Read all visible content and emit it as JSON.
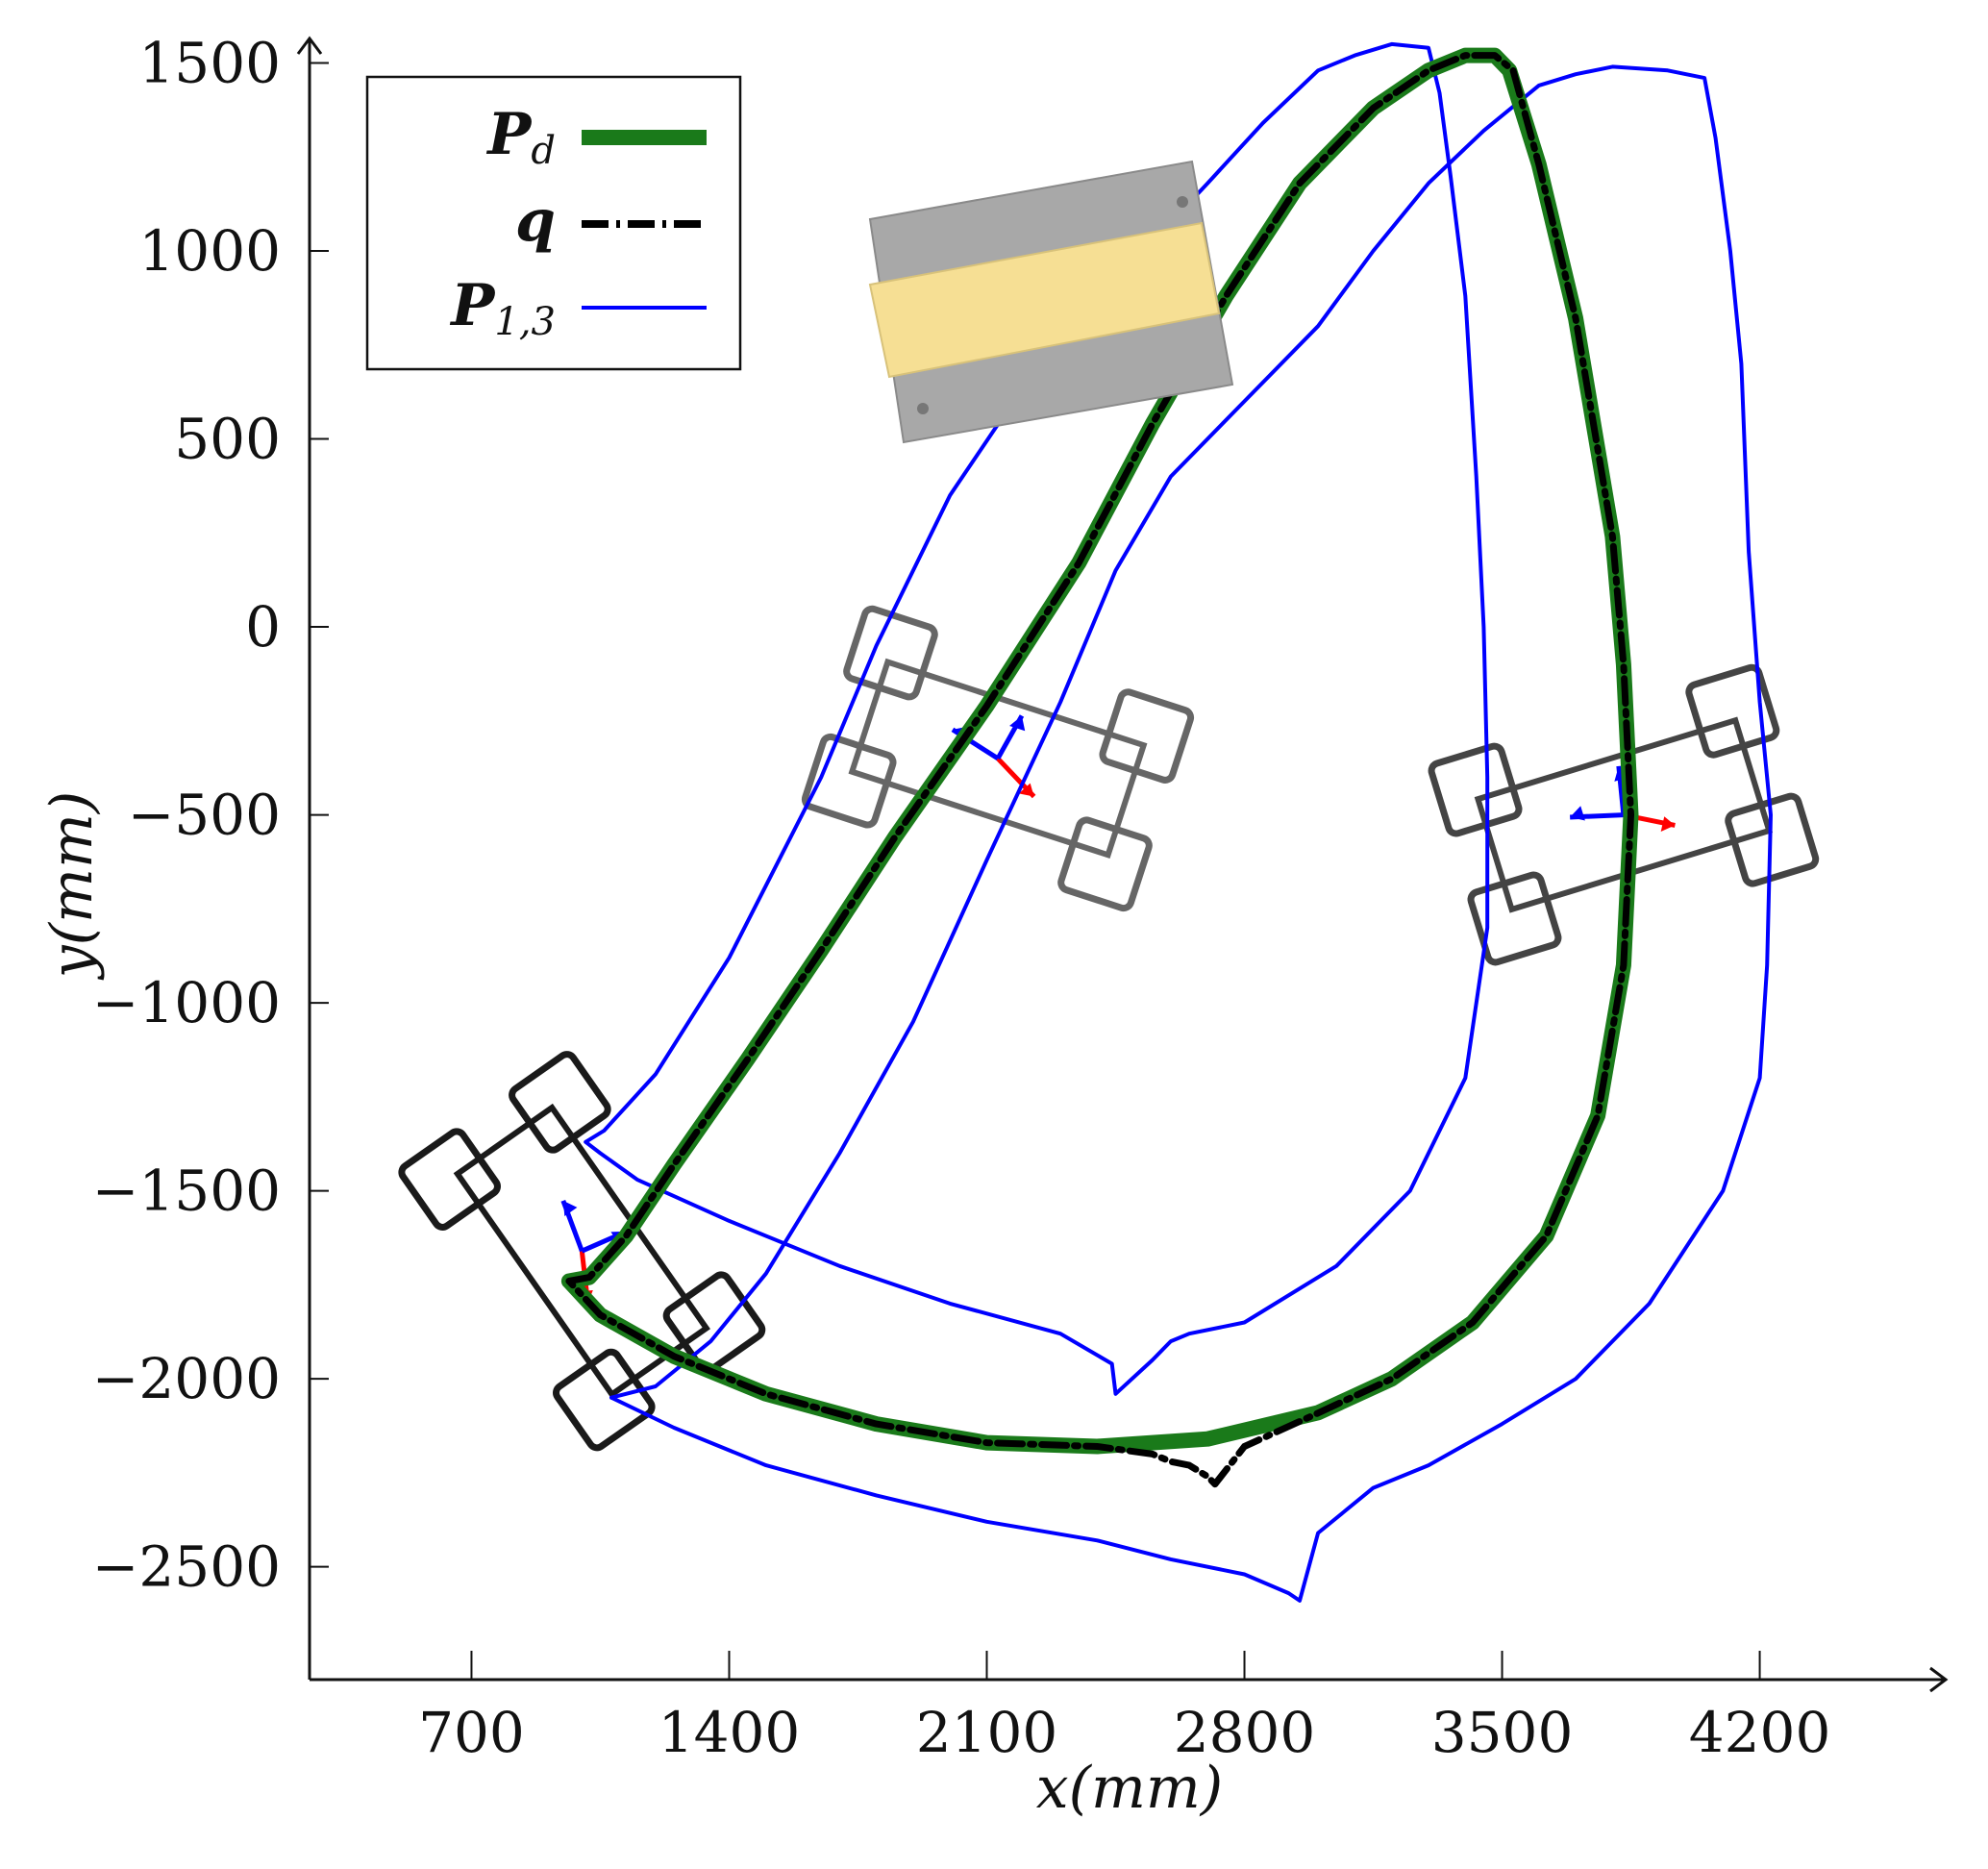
{
  "chart_data": {
    "type": "line",
    "title": "",
    "xlabel": "x(mm)",
    "ylabel": "y(mm)",
    "xlim": [
      260,
      4700
    ],
    "ylim": [
      -2800,
      1560
    ],
    "xticks": [
      700,
      1400,
      2100,
      2800,
      3500,
      4200
    ],
    "yticks": [
      1500,
      1000,
      500,
      0,
      -500,
      -1000,
      -1500,
      -2000,
      -2500
    ],
    "xtick_labels": [
      "700",
      "1400",
      "2100",
      "2800",
      "3500",
      "4200"
    ],
    "ytick_labels": [
      "1500",
      "1000",
      "500",
      "0",
      "−500",
      "−1000",
      "−1500",
      "−2000",
      "−2500"
    ],
    "grid": false,
    "legend_position": "top-left",
    "colors": {
      "desired": "#1a7a1a",
      "actual": "#000000",
      "boundary": "#0000ff",
      "frame_x": "#ff0000",
      "frame_y": "#0000ff",
      "robot_dark": "#1a1a1a",
      "robot_mid": "#444444",
      "robot_light": "#666666"
    },
    "legend": [
      {
        "key": "desired",
        "main": "P",
        "sub": "d",
        "style": "thick solid green"
      },
      {
        "key": "actual",
        "main": "q",
        "sub": "",
        "style": "dash-dot black"
      },
      {
        "key": "boundary",
        "main": "P",
        "sub": "1,3",
        "style": "thin solid blue"
      }
    ],
    "series": [
      {
        "key": "desired",
        "points": [
          [
            965,
            -1740
          ],
          [
            1020,
            -1730
          ],
          [
            1120,
            -1620
          ],
          [
            1250,
            -1430
          ],
          [
            1450,
            -1150
          ],
          [
            1650,
            -860
          ],
          [
            1850,
            -560
          ],
          [
            2100,
            -210
          ],
          [
            2350,
            170
          ],
          [
            2550,
            540
          ],
          [
            2750,
            880
          ],
          [
            2950,
            1180
          ],
          [
            3150,
            1380
          ],
          [
            3300,
            1480
          ],
          [
            3400,
            1520
          ],
          [
            3480,
            1520
          ],
          [
            3520,
            1480
          ],
          [
            3600,
            1230
          ],
          [
            3700,
            820
          ],
          [
            3800,
            240
          ],
          [
            3830,
            -100
          ],
          [
            3850,
            -500
          ],
          [
            3830,
            -900
          ],
          [
            3760,
            -1300
          ],
          [
            3620,
            -1620
          ],
          [
            3420,
            -1850
          ],
          [
            3200,
            -2000
          ],
          [
            3000,
            -2090
          ],
          [
            2700,
            -2160
          ],
          [
            2400,
            -2180
          ],
          [
            2100,
            -2170
          ],
          [
            1800,
            -2120
          ],
          [
            1500,
            -2040
          ],
          [
            1250,
            -1940
          ],
          [
            1050,
            -1830
          ],
          [
            965,
            -1740
          ]
        ]
      },
      {
        "key": "actual",
        "points": [
          [
            965,
            -1740
          ],
          [
            1020,
            -1730
          ],
          [
            1120,
            -1620
          ],
          [
            1250,
            -1430
          ],
          [
            1450,
            -1150
          ],
          [
            1650,
            -860
          ],
          [
            1850,
            -560
          ],
          [
            2100,
            -210
          ],
          [
            2350,
            170
          ],
          [
            2550,
            540
          ],
          [
            2750,
            880
          ],
          [
            2950,
            1180
          ],
          [
            3150,
            1380
          ],
          [
            3300,
            1480
          ],
          [
            3400,
            1520
          ],
          [
            3480,
            1520
          ],
          [
            3530,
            1480
          ],
          [
            3600,
            1230
          ],
          [
            3700,
            820
          ],
          [
            3800,
            240
          ],
          [
            3830,
            -100
          ],
          [
            3850,
            -500
          ],
          [
            3830,
            -900
          ],
          [
            3760,
            -1300
          ],
          [
            3620,
            -1620
          ],
          [
            3420,
            -1850
          ],
          [
            3200,
            -2000
          ],
          [
            2980,
            -2100
          ],
          [
            2800,
            -2180
          ],
          [
            2720,
            -2280
          ],
          [
            2700,
            -2260
          ],
          [
            2650,
            -2230
          ],
          [
            2600,
            -2220
          ],
          [
            2550,
            -2200
          ],
          [
            2400,
            -2180
          ],
          [
            2100,
            -2170
          ],
          [
            1800,
            -2120
          ],
          [
            1500,
            -2040
          ],
          [
            1250,
            -1940
          ],
          [
            1050,
            -1830
          ],
          [
            965,
            -1740
          ]
        ]
      },
      {
        "key": "boundary",
        "points": [
          [
            1010,
            -1370
          ],
          [
            1060,
            -1340
          ],
          [
            1200,
            -1190
          ],
          [
            1400,
            -880
          ],
          [
            1650,
            -400
          ],
          [
            1800,
            -50
          ],
          [
            2000,
            350
          ],
          [
            2200,
            640
          ],
          [
            2450,
            920
          ],
          [
            2700,
            1180
          ],
          [
            2850,
            1340
          ],
          [
            3000,
            1480
          ],
          [
            3100,
            1520
          ],
          [
            3200,
            1550
          ],
          [
            3300,
            1540
          ],
          [
            3330,
            1420
          ],
          [
            3360,
            1200
          ],
          [
            3400,
            880
          ],
          [
            3430,
            400
          ],
          [
            3450,
            0
          ],
          [
            3460,
            -400
          ],
          [
            3460,
            -800
          ],
          [
            3400,
            -1200
          ],
          [
            3250,
            -1500
          ],
          [
            3050,
            -1700
          ],
          [
            2800,
            -1850
          ],
          [
            2650,
            -1880
          ],
          [
            2600,
            -1900
          ],
          [
            2550,
            -1950
          ],
          [
            2450,
            -2040
          ],
          [
            2440,
            -1960
          ],
          [
            2300,
            -1880
          ],
          [
            2000,
            -1800
          ],
          [
            1700,
            -1700
          ],
          [
            1400,
            -1580
          ],
          [
            1150,
            -1470
          ],
          [
            1050,
            -1400
          ],
          [
            1010,
            -1370
          ]
        ]
      },
      {
        "key": "boundary",
        "points": [
          [
            1080,
            -2050
          ],
          [
            1200,
            -2020
          ],
          [
            1350,
            -1900
          ],
          [
            1500,
            -1720
          ],
          [
            1700,
            -1400
          ],
          [
            1900,
            -1050
          ],
          [
            2100,
            -620
          ],
          [
            2300,
            -200
          ],
          [
            2450,
            150
          ],
          [
            2600,
            400
          ],
          [
            2800,
            600
          ],
          [
            3000,
            800
          ],
          [
            3150,
            1000
          ],
          [
            3300,
            1180
          ],
          [
            3450,
            1320
          ],
          [
            3600,
            1440
          ],
          [
            3700,
            1470
          ],
          [
            3800,
            1490
          ],
          [
            3950,
            1480
          ],
          [
            4050,
            1460
          ],
          [
            4080,
            1300
          ],
          [
            4120,
            1000
          ],
          [
            4150,
            700
          ],
          [
            4170,
            200
          ],
          [
            4200,
            -200
          ],
          [
            4230,
            -500
          ],
          [
            4220,
            -900
          ],
          [
            4200,
            -1200
          ],
          [
            4100,
            -1500
          ],
          [
            3900,
            -1800
          ],
          [
            3700,
            -2000
          ],
          [
            3500,
            -2120
          ],
          [
            3300,
            -2230
          ],
          [
            3150,
            -2290
          ],
          [
            3000,
            -2410
          ],
          [
            2950,
            -2590
          ],
          [
            2920,
            -2570
          ],
          [
            2800,
            -2520
          ],
          [
            2600,
            -2480
          ],
          [
            2400,
            -2430
          ],
          [
            2100,
            -2380
          ],
          [
            1800,
            -2310
          ],
          [
            1500,
            -2230
          ],
          [
            1250,
            -2130
          ],
          [
            1080,
            -2050
          ]
        ]
      }
    ],
    "robots": [
      {
        "center": [
          1000,
          -1660
        ],
        "angle_deg": -55,
        "color": "robot_dark"
      },
      {
        "center": [
          2130,
          -350
        ],
        "angle_deg": -18,
        "color": "robot_light"
      },
      {
        "center": [
          3830,
          -500
        ],
        "angle_deg": 17,
        "color": "robot_mid"
      }
    ]
  }
}
